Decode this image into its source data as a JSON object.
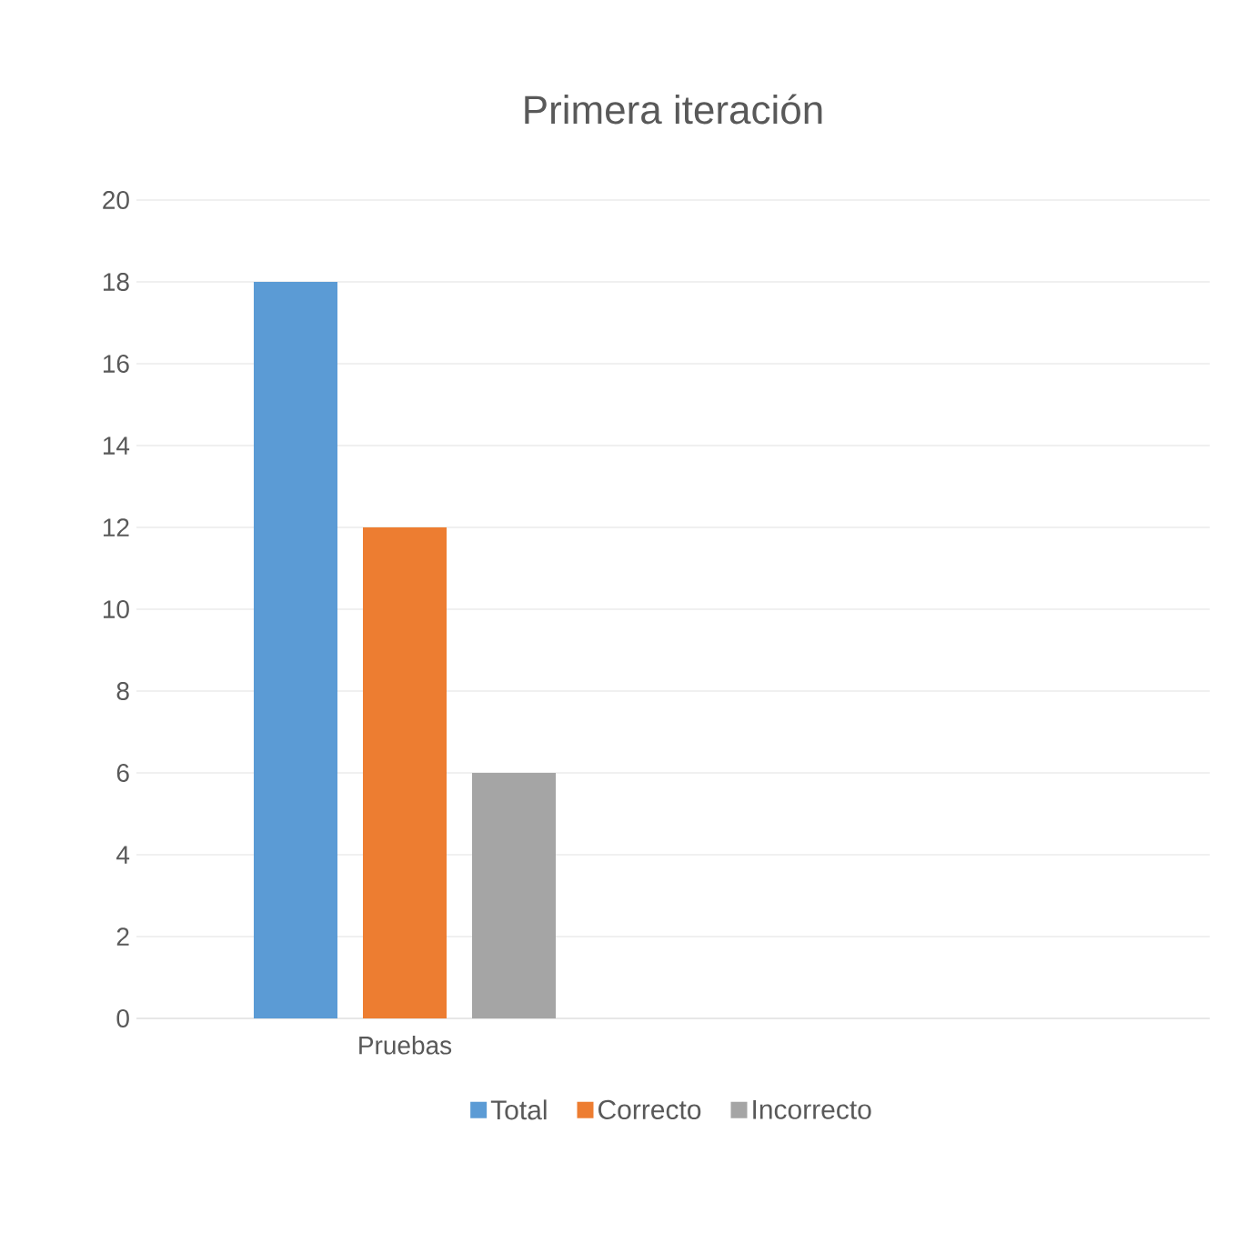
{
  "chart_data": {
    "type": "bar",
    "title": "Primera iteración",
    "categories": [
      "Pruebas",
      null
    ],
    "series": [
      {
        "name": "Total",
        "color": "#5b9bd5",
        "values": [
          18,
          null
        ]
      },
      {
        "name": "Correcto",
        "color": "#ed7d31",
        "values": [
          12,
          null
        ]
      },
      {
        "name": "Incorrecto",
        "color": "#a5a5a5",
        "values": [
          6,
          null
        ]
      }
    ],
    "ylim": [
      0,
      20
    ],
    "yticks": [
      0,
      2,
      4,
      6,
      8,
      10,
      12,
      14,
      16,
      18,
      20
    ],
    "grid": "y",
    "legend": "bottom"
  }
}
